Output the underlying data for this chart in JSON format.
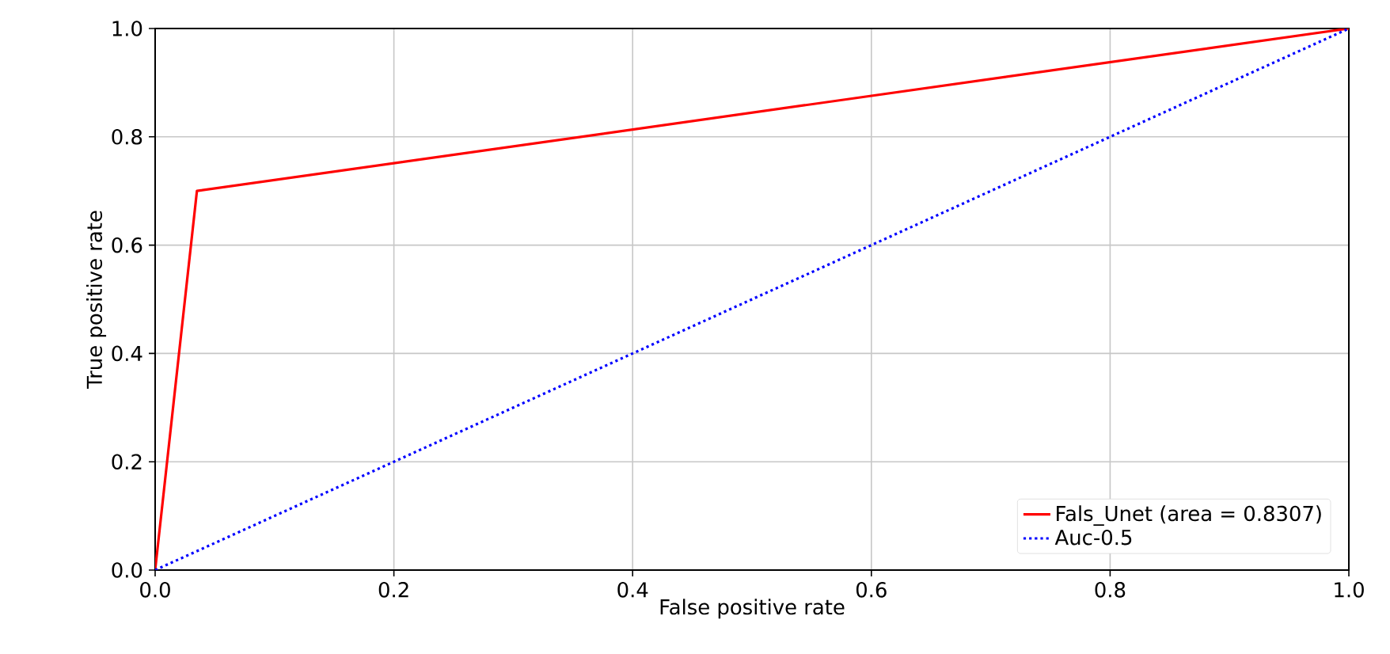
{
  "chart_data": {
    "type": "line",
    "xlabel": "False positive rate",
    "ylabel": "True positive rate",
    "series": [
      {
        "name": "Fals_Unet (area = 0.8307)",
        "color": "#ff0000",
        "x": [
          0,
          0.035,
          1
        ],
        "values": [
          0,
          0.7,
          1
        ],
        "line_style": "solid"
      },
      {
        "name": "Auc-0.5",
        "color": "#0000ff",
        "x": [
          0,
          1
        ],
        "values": [
          0,
          1
        ],
        "line_style": "dotted"
      }
    ],
    "xlim": [
      0,
      1
    ],
    "ylim": [
      0,
      1
    ],
    "xticks": [
      {
        "value": 0,
        "label": "0.0"
      },
      0.2,
      0.4,
      0.6,
      0.8,
      {
        "value": 1,
        "label": "1.0"
      }
    ],
    "yticks": [
      {
        "value": 0,
        "label": "0.0"
      },
      0.2,
      0.4,
      0.6,
      0.8,
      {
        "value": 1,
        "label": "1.0"
      }
    ],
    "grid": true,
    "legend": "bottom right",
    "marker": "none"
  }
}
